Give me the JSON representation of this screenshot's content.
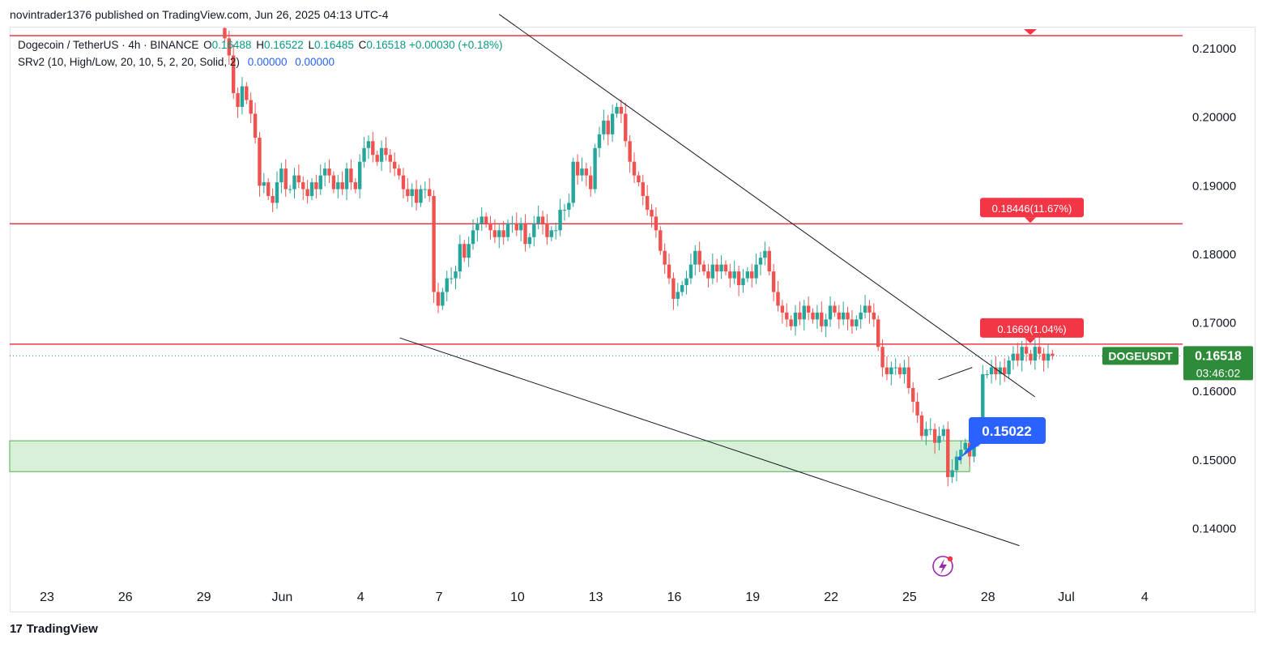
{
  "attribution": "novintrader1376 published on TradingView.com, Jun 26, 2025 04:13 UTC-4",
  "legend": {
    "symbol": "Dogecoin / TetherUS · 4h · BINANCE",
    "ohlc": [
      {
        "label": "O",
        "value": "0.16488"
      },
      {
        "label": "H",
        "value": "0.16522"
      },
      {
        "label": "L",
        "value": "0.16485"
      },
      {
        "label": "C",
        "value": "0.16518"
      },
      {
        "label": "",
        "value": "+0.00030 (+0.18%)"
      }
    ],
    "indicator": "SRv2 (10, High/Low, 20, 10, 5, 2, 20, Solid, 2)",
    "indicator_values": [
      "0.00000",
      "0.00000"
    ]
  },
  "price_badge": {
    "ticker": "DOGEUSDT",
    "price": "0.16518",
    "countdown": "03:46:02"
  },
  "footer": {
    "brand": "TradingView"
  },
  "colors": {
    "up": "#26a69a",
    "down": "#ef5350",
    "level": "#f23645",
    "zone_fill": "#d8f0d8",
    "zone_stroke": "#4caf50",
    "badge_green": "#2e8b3a",
    "blue_label": "#2962ff"
  },
  "chart_data": {
    "type": "candlestick",
    "timeframe": "4h",
    "y_ticks": [
      0.14,
      0.15,
      0.16,
      0.17,
      0.18,
      0.19,
      0.2,
      0.21
    ],
    "y_tick_labels": [
      "0.14000",
      "0.15000",
      "0.16000",
      "0.17000",
      "0.18000",
      "0.19000",
      "0.20000",
      "0.21000"
    ],
    "ylim": [
      0.1335,
      0.2145
    ],
    "x_ticks": [
      {
        "day": 0,
        "label": "23"
      },
      {
        "day": 3,
        "label": "26"
      },
      {
        "day": 6,
        "label": "29"
      },
      {
        "day": 9,
        "label": "Jun"
      },
      {
        "day": 12,
        "label": "4"
      },
      {
        "day": 15,
        "label": "7"
      },
      {
        "day": 18,
        "label": "10"
      },
      {
        "day": 21,
        "label": "13"
      },
      {
        "day": 24,
        "label": "16"
      },
      {
        "day": 27,
        "label": "19"
      },
      {
        "day": 30,
        "label": "22"
      },
      {
        "day": 33,
        "label": "25"
      },
      {
        "day": 36,
        "label": "28"
      },
      {
        "day": 39,
        "label": "Jul"
      },
      {
        "day": 42,
        "label": "4"
      }
    ],
    "xlim": [
      0,
      42
    ],
    "first_candle_day": 6.8,
    "candle_step_days": 0.16667,
    "closes": [
      0.2115,
      0.209,
      0.2035,
      0.2015,
      0.2045,
      0.2025,
      0.2005,
      0.197,
      0.19,
      0.1905,
      0.1885,
      0.1875,
      0.1905,
      0.1925,
      0.1895,
      0.1895,
      0.1915,
      0.1905,
      0.1895,
      0.1885,
      0.1905,
      0.1895,
      0.1915,
      0.1925,
      0.1915,
      0.1895,
      0.1905,
      0.1895,
      0.1925,
      0.1905,
      0.1895,
      0.1935,
      0.1955,
      0.1965,
      0.1945,
      0.1935,
      0.1955,
      0.1945,
      0.1935,
      0.1925,
      0.1915,
      0.1895,
      0.1885,
      0.1895,
      0.1875,
      0.1895,
      0.1895,
      0.1885,
      0.1745,
      0.1725,
      0.1745,
      0.1765,
      0.1765,
      0.1775,
      0.1815,
      0.1795,
      0.1815,
      0.1835,
      0.1845,
      0.1855,
      0.1845,
      0.1835,
      0.1825,
      0.1835,
      0.1825,
      0.1845,
      0.1845,
      0.1835,
      0.1845,
      0.1815,
      0.1825,
      0.1845,
      0.1855,
      0.1845,
      0.1825,
      0.1835,
      0.1835,
      0.1865,
      0.1865,
      0.1875,
      0.1935,
      0.1915,
      0.1925,
      0.1915,
      0.1895,
      0.1955,
      0.1975,
      0.1995,
      0.1975,
      0.2005,
      0.2015,
      0.2005,
      0.1965,
      0.1935,
      0.1915,
      0.1905,
      0.1885,
      0.1865,
      0.1855,
      0.1835,
      0.1805,
      0.1785,
      0.1765,
      0.1735,
      0.1745,
      0.1755,
      0.1765,
      0.1785,
      0.1805,
      0.1785,
      0.1775,
      0.1765,
      0.1785,
      0.1775,
      0.1785,
      0.1775,
      0.1765,
      0.1775,
      0.1755,
      0.1765,
      0.1775,
      0.1765,
      0.1785,
      0.1795,
      0.1805,
      0.1775,
      0.1745,
      0.1725,
      0.1715,
      0.1705,
      0.1695,
      0.1715,
      0.1705,
      0.1725,
      0.1715,
      0.1705,
      0.1715,
      0.1695,
      0.1705,
      0.1725,
      0.1715,
      0.1705,
      0.1715,
      0.1705,
      0.1695,
      0.1705,
      0.1715,
      0.1725,
      0.1715,
      0.1705,
      0.1665,
      0.1635,
      0.1625,
      0.1635,
      0.1635,
      0.1625,
      0.1635,
      0.1605,
      0.1585,
      0.1565,
      0.1535,
      0.1545,
      0.1545,
      0.1525,
      0.1535,
      0.1545,
      0.1475,
      0.1485,
      0.1505,
      0.1515,
      0.1525,
      0.1505,
      0.1535,
      0.1545,
      0.1625,
      0.1625,
      0.1635,
      0.1625,
      0.1635,
      0.1625,
      0.1645,
      0.1655,
      0.1645,
      0.1665,
      0.1655,
      0.1645,
      0.1665,
      0.1655,
      0.1645,
      0.1655,
      0.1652
    ],
    "levels": [
      {
        "price": 0.2119,
        "color": "#f23645"
      },
      {
        "price": 0.18446,
        "label": "0.18446(11.67%)",
        "color": "#f23645"
      },
      {
        "price": 0.1669,
        "label": "0.1669(1.04%)",
        "color": "#f23645"
      }
    ],
    "current_price": 0.16518,
    "demand_zone": {
      "price_from": 0.1483,
      "price_to": 0.1528,
      "day_from": -3,
      "day_to": 35.3
    },
    "trendlines": [
      {
        "from": {
          "day": 17.3,
          "price": 0.215
        },
        "to": {
          "day": 37.8,
          "price": 0.1592
        }
      },
      {
        "from": {
          "day": 13.5,
          "price": 0.1678
        },
        "to": {
          "day": 37.2,
          "price": 0.1375
        }
      },
      {
        "from": {
          "day": 34.1,
          "price": 0.1617
        },
        "to": {
          "day": 35.4,
          "price": 0.1635
        }
      }
    ],
    "target_label": {
      "day": 36.2,
      "price": 0.15022,
      "text": "0.15022",
      "color": "#2962ff"
    }
  }
}
